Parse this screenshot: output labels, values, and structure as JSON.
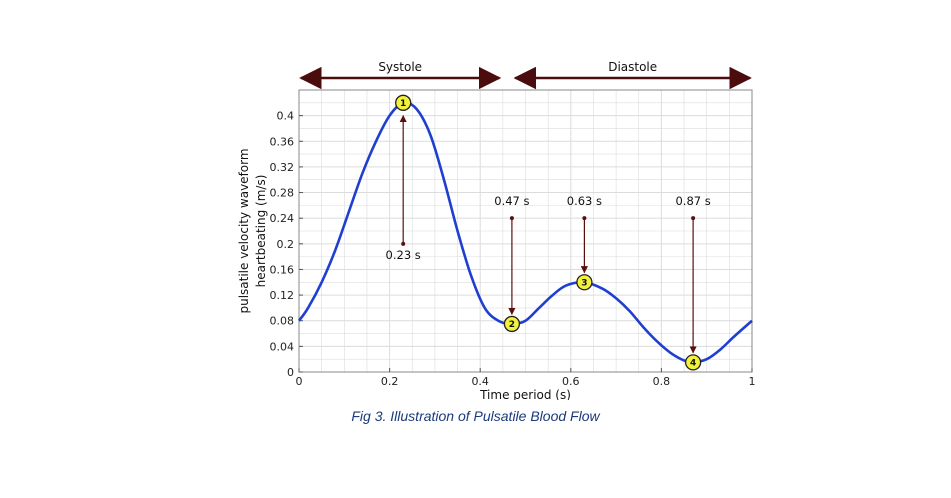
{
  "caption": "Fig 3. Illustration of Pulsatile Blood Flow",
  "chart_data": {
    "type": "line",
    "title": "",
    "xlabel": "Time period (s)",
    "ylabel_lines": [
      "pulsatile velocity waveform",
      "heartbeating (m/s)"
    ],
    "xlim": [
      0,
      1
    ],
    "ylim": [
      0,
      0.44
    ],
    "xticks": [
      0,
      0.2,
      0.4,
      0.6,
      0.8,
      1
    ],
    "xtick_labels": [
      "0",
      "0.2",
      "0.4",
      "0.6",
      "0.8",
      "1"
    ],
    "yticks": [
      0,
      0.04,
      0.08,
      0.12,
      0.16,
      0.2,
      0.24,
      0.28,
      0.32,
      0.36,
      0.4
    ],
    "ytick_labels": [
      "0",
      "0.04",
      "0.08",
      "0.12",
      "0.16",
      "0.2",
      "0.24",
      "0.28",
      "0.32",
      "0.36",
      "0.4"
    ],
    "grid": true,
    "series": [
      {
        "color": "#1f3fd1",
        "points": [
          [
            0,
            0.08
          ],
          [
            0.02,
            0.1
          ],
          [
            0.05,
            0.14
          ],
          [
            0.08,
            0.19
          ],
          [
            0.11,
            0.25
          ],
          [
            0.14,
            0.31
          ],
          [
            0.17,
            0.36
          ],
          [
            0.2,
            0.4
          ],
          [
            0.23,
            0.42
          ],
          [
            0.26,
            0.41
          ],
          [
            0.29,
            0.37
          ],
          [
            0.32,
            0.3
          ],
          [
            0.35,
            0.22
          ],
          [
            0.38,
            0.15
          ],
          [
            0.41,
            0.1
          ],
          [
            0.44,
            0.08
          ],
          [
            0.47,
            0.075
          ],
          [
            0.5,
            0.08
          ],
          [
            0.53,
            0.1
          ],
          [
            0.56,
            0.12
          ],
          [
            0.59,
            0.135
          ],
          [
            0.63,
            0.14
          ],
          [
            0.67,
            0.13
          ],
          [
            0.7,
            0.115
          ],
          [
            0.73,
            0.095
          ],
          [
            0.76,
            0.07
          ],
          [
            0.79,
            0.048
          ],
          [
            0.82,
            0.03
          ],
          [
            0.85,
            0.018
          ],
          [
            0.87,
            0.015
          ],
          [
            0.9,
            0.02
          ],
          [
            0.93,
            0.035
          ],
          [
            0.96,
            0.055
          ],
          [
            1.0,
            0.08
          ]
        ]
      }
    ],
    "phases": [
      {
        "label": "Systole",
        "x0": 0,
        "x1": 0.46
      },
      {
        "label": "Diastole",
        "x0": 0.46,
        "x1": 1
      }
    ],
    "markers": [
      {
        "num": "1",
        "x": 0.23,
        "y": 0.42,
        "label": "0.23 s",
        "arrow_from_y": 0.2,
        "arrow_to_y": 0.4,
        "label_pos": "below"
      },
      {
        "num": "2",
        "x": 0.47,
        "y": 0.075,
        "label": "0.47 s",
        "arrow_from_y": 0.24,
        "arrow_to_y": 0.09,
        "label_pos": "above"
      },
      {
        "num": "3",
        "x": 0.63,
        "y": 0.14,
        "label": "0.63 s",
        "arrow_from_y": 0.24,
        "arrow_to_y": 0.155,
        "label_pos": "above"
      },
      {
        "num": "4",
        "x": 0.87,
        "y": 0.015,
        "label": "0.87 s",
        "arrow_from_y": 0.24,
        "arrow_to_y": 0.03,
        "label_pos": "above"
      }
    ],
    "colors": {
      "line": "#1f3fd1",
      "arrow": "#5a0f0f",
      "marker_fill": "#f2f23c",
      "grid": "#dcdcdc"
    }
  }
}
